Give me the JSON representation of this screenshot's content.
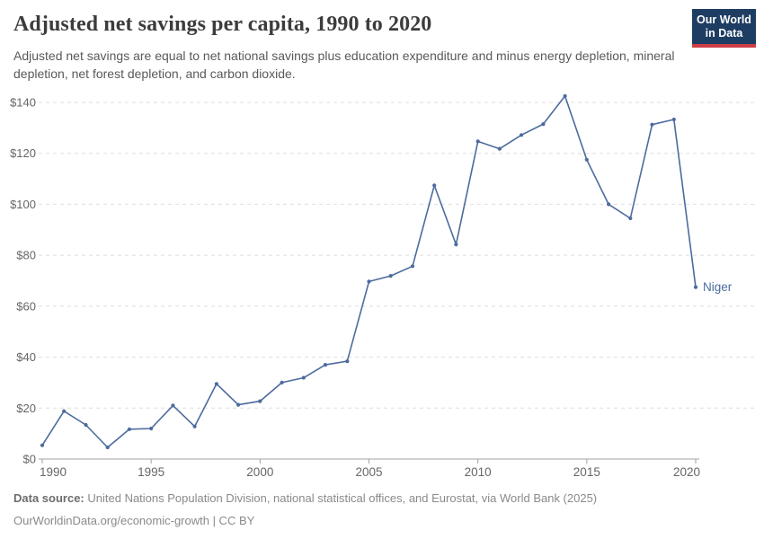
{
  "header": {
    "title": "Adjusted net savings per capita, 1990 to 2020",
    "subtitle": "Adjusted net savings are equal to net national savings plus education expenditure and minus energy depletion, mineral depletion, net forest depletion, and carbon dioxide.",
    "logo": {
      "line1": "Our World",
      "line2": "in Data",
      "bg_color": "#1d3d63",
      "accent_color": "#cd3e46"
    }
  },
  "chart_data": {
    "type": "line",
    "title": "Adjusted net savings per capita, 1990 to 2020",
    "xlabel": "",
    "ylabel": "",
    "x": [
      1990,
      1991,
      1992,
      1993,
      1994,
      1995,
      1996,
      1997,
      1998,
      1999,
      2000,
      2001,
      2002,
      2003,
      2004,
      2005,
      2006,
      2007,
      2008,
      2009,
      2010,
      2011,
      2012,
      2013,
      2014,
      2015,
      2016,
      2017,
      2018,
      2019,
      2020
    ],
    "series": [
      {
        "name": "Niger",
        "color": "#4c6b9e",
        "values": [
          5.4,
          18.8,
          13.4,
          4.6,
          11.7,
          12,
          21,
          12.8,
          29.5,
          21.3,
          22.7,
          30,
          31.9,
          37,
          38.4,
          69.7,
          71.9,
          75.7,
          107.4,
          84.2,
          124.7,
          121.8,
          127.2,
          131.5,
          142.5,
          117.5,
          100,
          94.5,
          131.3,
          133.3,
          67.5
        ]
      }
    ],
    "xlim": [
      1990,
      2020
    ],
    "ylim": [
      0,
      140
    ],
    "yticks": [
      0,
      20,
      40,
      60,
      80,
      100,
      120,
      140
    ],
    "ytick_prefix": "$",
    "xticks": [
      1990,
      1995,
      2000,
      2005,
      2010,
      2015,
      2020
    ],
    "grid": "dashed horizontal",
    "legend_position": "end-of-line label",
    "axis_text_color": "#666666",
    "gridline_color": "#dedede",
    "axis_line_color": "#a3a3a3",
    "marker": "dot"
  },
  "footer": {
    "datasource_label": "Data source:",
    "datasource_text": "United Nations Population Division, national statistical offices, and Eurostat, via World Bank (2025)",
    "link_line": "OurWorldinData.org/economic-growth | CC BY"
  }
}
